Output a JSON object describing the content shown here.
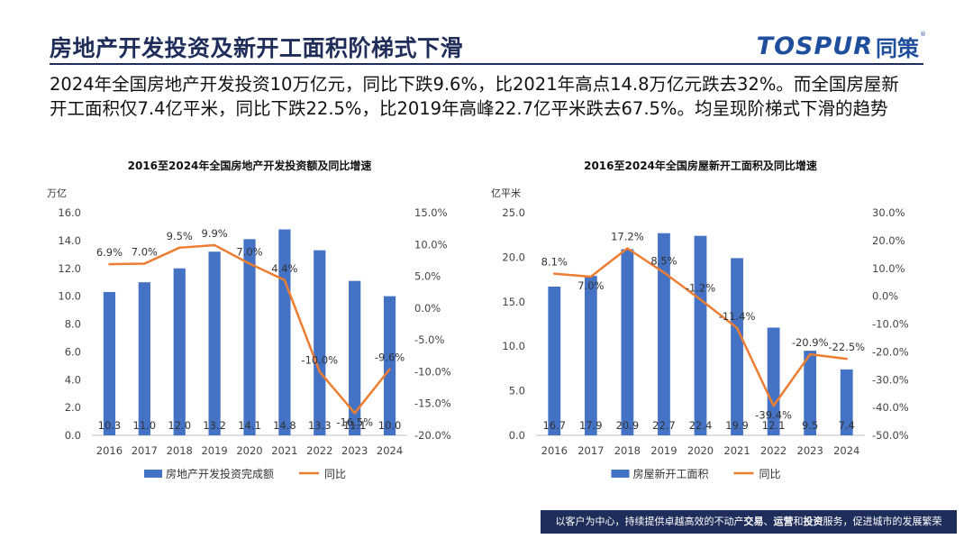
{
  "header": {
    "title": "房地产开发投资及新开工面积阶梯式下滑",
    "logo_latin": "TOSPUR",
    "logo_cn": "同策",
    "logo_mark": "®"
  },
  "summary": "2024年全国房地产开发投资10万亿元，同比下跌9.6%，比2021年高点14.8万亿元跌去32%。而全国房屋新开工面积仅7.4亿平米，同比下跌22.5%，比2019年高峰22.7亿平米跌去67.5%。均呈现阶梯式下滑的趋势",
  "footer": {
    "prefix": "以客户为中心，持续提供卓越高效的不动产",
    "k1": "交易",
    "sep1": "、",
    "k2": "运营",
    "sep2": "和",
    "k3": "投资",
    "suffix": "服务，促进城市的发展繁荣"
  },
  "colors": {
    "bar": "#4472c4",
    "line": "#ed7d31",
    "title": "#1f2d5a",
    "logo": "#1f4e9c"
  },
  "chart_data": [
    {
      "type": "bar",
      "title": "2016至2024年全国房地产开发投资额及同比增速",
      "ylabel": "万亿",
      "categories": [
        "2016",
        "2017",
        "2018",
        "2019",
        "2020",
        "2021",
        "2022",
        "2023",
        "2024"
      ],
      "series": [
        {
          "name": "房地产开发投资完成额",
          "type": "bar",
          "axis": "left",
          "values": [
            10.3,
            11.0,
            12.0,
            13.2,
            14.1,
            14.8,
            13.3,
            11.1,
            10.0
          ],
          "labels": [
            "10.3",
            "11.0",
            "12.0",
            "13.2",
            "14.1",
            "14.8",
            "13.3",
            "11.1",
            "10.0"
          ]
        },
        {
          "name": "同比",
          "type": "line",
          "axis": "right",
          "values": [
            6.9,
            7.0,
            9.5,
            9.9,
            7.0,
            4.4,
            -10.0,
            -16.5,
            -9.6
          ],
          "labels": [
            "6.9%",
            "7.0%",
            "9.5%",
            "9.9%",
            "7.0%",
            "4.4%",
            "-10.0%",
            "-16.5%",
            "-9.6%"
          ]
        }
      ],
      "ylim": [
        0,
        16
      ],
      "yticks": [
        "0.0",
        "2.0",
        "4.0",
        "6.0",
        "8.0",
        "10.0",
        "12.0",
        "14.0",
        "16.0"
      ],
      "y2lim": [
        -20,
        15
      ],
      "y2ticks": [
        "-20.0%",
        "-15.0%",
        "-10.0%",
        "-5.0%",
        "0.0%",
        "5.0%",
        "10.0%",
        "15.0%"
      ],
      "legend": "bottom"
    },
    {
      "type": "bar",
      "title": "2016至2024年全国房屋新开工面积及同比增速",
      "ylabel": "亿平米",
      "categories": [
        "2016",
        "2017",
        "2018",
        "2019",
        "2020",
        "2021",
        "2022",
        "2023",
        "2024"
      ],
      "series": [
        {
          "name": "房屋新开工面积",
          "type": "bar",
          "axis": "left",
          "values": [
            16.7,
            17.9,
            20.9,
            22.7,
            22.4,
            19.9,
            12.1,
            9.5,
            7.4
          ],
          "labels": [
            "16.7",
            "17.9",
            "20.9",
            "22.7",
            "22.4",
            "19.9",
            "12.1",
            "9.5",
            "7.4"
          ]
        },
        {
          "name": "同比",
          "type": "line",
          "axis": "right",
          "values": [
            8.1,
            7.0,
            17.2,
            8.5,
            -1.2,
            -11.4,
            -39.4,
            -20.9,
            -22.5
          ],
          "labels": [
            "8.1%",
            "7.0%",
            "17.2%",
            "8.5%",
            "-1.2%",
            "-11.4%",
            "-39.4%",
            "-20.9%",
            "-22.5%"
          ]
        }
      ],
      "ylim": [
        0,
        25
      ],
      "yticks": [
        "0.0",
        "5.0",
        "10.0",
        "15.0",
        "20.0",
        "25.0"
      ],
      "y2lim": [
        -50,
        30
      ],
      "y2ticks": [
        "-50.0%",
        "-40.0%",
        "-30.0%",
        "-20.0%",
        "-10.0%",
        "0.0%",
        "10.0%",
        "20.0%",
        "30.0%"
      ],
      "legend": "bottom"
    }
  ]
}
